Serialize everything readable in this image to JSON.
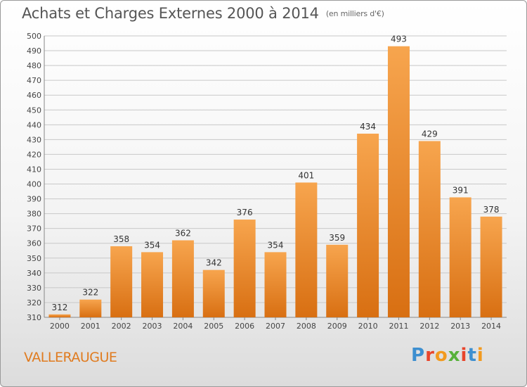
{
  "header": {
    "title": "Achats et Charges Externes 2000 à 2014",
    "subtitle": "(en milliers d'€)"
  },
  "footer": {
    "commune": "VALLERAUGUE",
    "logo_letters": [
      "P",
      "r",
      "o",
      "x",
      "i",
      "t",
      "i"
    ],
    "logo_colors": [
      "#3d8fd0",
      "#e8452c",
      "#f29a1f",
      "#58b13b",
      "#e8452c",
      "#3d8fd0",
      "#f29a1f"
    ]
  },
  "chart_data": {
    "type": "bar",
    "title": "Achats et Charges Externes 2000 à 2014",
    "subtitle": "(en milliers d'€)",
    "categories": [
      "2000",
      "2001",
      "2002",
      "2003",
      "2004",
      "2005",
      "2006",
      "2007",
      "2008",
      "2009",
      "2010",
      "2011",
      "2012",
      "2013",
      "2014"
    ],
    "values": [
      312,
      322,
      358,
      354,
      362,
      342,
      376,
      354,
      401,
      359,
      434,
      493,
      429,
      391,
      378
    ],
    "ylim": [
      310,
      500
    ],
    "ytick_step": 10,
    "grid": true,
    "bar_color_top": "#f7a54e",
    "bar_color_bottom": "#d86f12"
  }
}
